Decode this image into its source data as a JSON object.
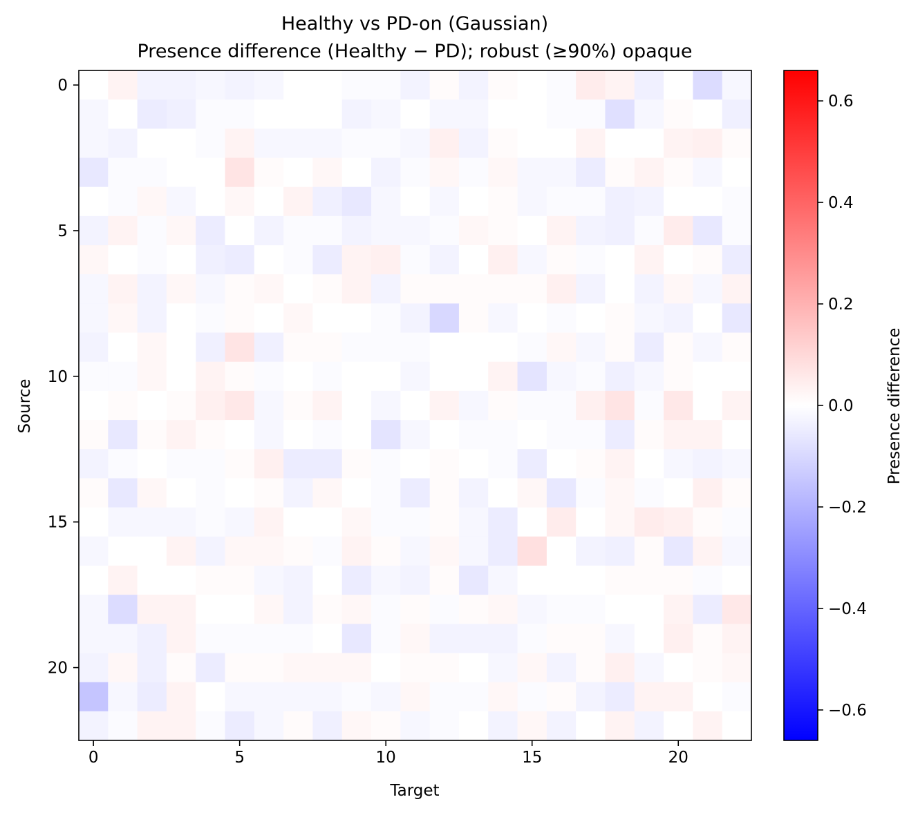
{
  "chart_data": {
    "type": "heatmap",
    "title": "Healthy vs PD-on (Gaussian)",
    "subtitle": "Presence difference (Healthy − PD); robust (≥90%) opaque",
    "xlabel": "Target",
    "ylabel": "Source",
    "x_ticks": [
      "0",
      "5",
      "10",
      "15",
      "20"
    ],
    "y_ticks": [
      "0",
      "5",
      "10",
      "15",
      "20"
    ],
    "n_rows": 23,
    "n_cols": 23,
    "colormap": "bwr",
    "color_min": "#0000ff",
    "color_mid": "#ffffff",
    "color_max": "#ff0000",
    "vmin": -0.66,
    "vmax": 0.66,
    "colorbar": {
      "label": "Presence difference",
      "ticks": [
        "−0.6",
        "−0.4",
        "−0.2",
        "0.0",
        "0.2",
        "0.4",
        "0.6"
      ],
      "tick_values": [
        -0.6,
        -0.4,
        -0.2,
        0.0,
        0.2,
        0.4,
        0.6
      ]
    },
    "values": [
      [
        0.0,
        0.03,
        -0.03,
        -0.03,
        -0.02,
        -0.03,
        -0.02,
        0.0,
        0.0,
        -0.01,
        -0.01,
        -0.03,
        0.01,
        -0.03,
        0.01,
        0.0,
        -0.01,
        0.05,
        0.03,
        -0.04,
        0.0,
        -0.09,
        -0.02
      ],
      [
        -0.02,
        0.0,
        -0.05,
        -0.04,
        -0.01,
        -0.01,
        0.0,
        0.0,
        0.0,
        -0.03,
        -0.02,
        0.0,
        -0.02,
        -0.02,
        0.0,
        0.0,
        -0.01,
        -0.01,
        -0.08,
        -0.02,
        0.01,
        0.0,
        -0.04
      ],
      [
        -0.02,
        -0.03,
        0.0,
        0.0,
        -0.01,
        0.03,
        -0.02,
        -0.02,
        -0.02,
        -0.01,
        -0.01,
        -0.02,
        0.04,
        -0.03,
        0.01,
        0.0,
        0.0,
        0.03,
        0.0,
        0.0,
        0.03,
        0.04,
        0.01
      ],
      [
        -0.06,
        -0.01,
        -0.01,
        0.0,
        0.0,
        0.07,
        0.01,
        0.0,
        0.02,
        0.0,
        -0.03,
        -0.01,
        0.02,
        -0.01,
        0.02,
        -0.02,
        -0.02,
        -0.05,
        0.01,
        0.03,
        0.01,
        -0.02,
        0.0
      ],
      [
        0.0,
        -0.01,
        0.02,
        -0.02,
        0.0,
        0.02,
        0.0,
        0.03,
        -0.04,
        -0.06,
        -0.02,
        0.0,
        -0.02,
        0.0,
        0.01,
        -0.02,
        -0.01,
        -0.01,
        -0.04,
        -0.03,
        0.0,
        0.0,
        -0.01
      ],
      [
        -0.03,
        0.03,
        -0.01,
        0.02,
        -0.05,
        0.0,
        -0.03,
        -0.01,
        -0.01,
        -0.03,
        -0.02,
        -0.02,
        -0.01,
        0.02,
        0.01,
        0.0,
        0.03,
        -0.03,
        -0.04,
        -0.01,
        0.05,
        -0.06,
        -0.01
      ],
      [
        0.02,
        0.0,
        -0.01,
        0.0,
        -0.04,
        -0.05,
        0.0,
        -0.01,
        -0.05,
        0.03,
        0.04,
        -0.01,
        -0.03,
        0.0,
        0.04,
        -0.02,
        0.01,
        -0.01,
        0.0,
        0.03,
        0.0,
        0.01,
        -0.05
      ],
      [
        -0.02,
        0.03,
        -0.03,
        0.02,
        -0.02,
        0.01,
        0.02,
        0.0,
        0.01,
        0.03,
        -0.03,
        0.01,
        0.01,
        0.01,
        0.01,
        0.01,
        0.04,
        -0.03,
        0.0,
        -0.03,
        0.02,
        -0.02,
        0.03
      ],
      [
        -0.02,
        0.02,
        -0.03,
        0.0,
        -0.01,
        0.01,
        0.0,
        0.02,
        0.0,
        0.0,
        -0.01,
        -0.03,
        -0.1,
        0.01,
        -0.02,
        0.0,
        -0.01,
        0.0,
        0.01,
        -0.02,
        -0.03,
        0.0,
        -0.06
      ],
      [
        -0.03,
        0.0,
        0.02,
        0.0,
        -0.04,
        0.07,
        -0.04,
        0.01,
        0.01,
        -0.01,
        -0.01,
        -0.01,
        0.0,
        0.0,
        0.0,
        -0.01,
        0.02,
        -0.02,
        0.01,
        -0.05,
        0.01,
        -0.02,
        0.01
      ],
      [
        -0.01,
        -0.01,
        0.02,
        0.0,
        0.03,
        0.01,
        -0.01,
        0.0,
        -0.01,
        0.0,
        0.0,
        -0.02,
        0.0,
        0.0,
        0.03,
        -0.07,
        -0.02,
        -0.01,
        -0.04,
        -0.02,
        0.01,
        0.0,
        0.0
      ],
      [
        0.0,
        0.01,
        0.0,
        0.01,
        0.04,
        0.06,
        -0.02,
        0.01,
        0.03,
        0.0,
        -0.02,
        0.0,
        0.03,
        -0.02,
        0.01,
        -0.01,
        -0.01,
        0.04,
        0.07,
        -0.01,
        0.06,
        0.0,
        0.03
      ],
      [
        0.01,
        -0.06,
        0.01,
        0.03,
        0.01,
        0.0,
        -0.02,
        0.0,
        -0.01,
        0.0,
        -0.07,
        -0.02,
        0.0,
        -0.01,
        -0.01,
        0.0,
        -0.01,
        -0.01,
        -0.05,
        0.01,
        0.03,
        0.03,
        0.0
      ],
      [
        -0.03,
        -0.01,
        0.0,
        -0.01,
        -0.01,
        0.01,
        0.04,
        -0.05,
        -0.05,
        0.01,
        -0.01,
        0.0,
        0.01,
        0.0,
        -0.01,
        -0.05,
        0.0,
        0.01,
        0.03,
        0.0,
        -0.02,
        -0.03,
        -0.02
      ],
      [
        0.01,
        -0.06,
        0.02,
        0.0,
        -0.01,
        0.0,
        0.01,
        -0.03,
        0.02,
        0.0,
        -0.01,
        -0.05,
        0.01,
        -0.03,
        0.0,
        0.02,
        -0.06,
        -0.01,
        0.02,
        -0.01,
        0.0,
        0.04,
        0.01
      ],
      [
        0.0,
        -0.02,
        -0.02,
        -0.02,
        -0.01,
        -0.02,
        0.03,
        0.0,
        0.0,
        0.02,
        -0.01,
        -0.01,
        0.01,
        -0.02,
        -0.05,
        0.0,
        0.05,
        0.0,
        0.02,
        0.05,
        0.04,
        0.01,
        -0.01
      ],
      [
        -0.02,
        0.0,
        0.0,
        0.03,
        -0.03,
        0.02,
        0.02,
        0.01,
        -0.01,
        0.03,
        0.01,
        -0.02,
        0.02,
        -0.02,
        -0.05,
        0.08,
        0.0,
        -0.03,
        -0.04,
        0.01,
        -0.06,
        0.03,
        -0.02
      ],
      [
        0.0,
        0.03,
        0.0,
        0.0,
        0.01,
        0.01,
        -0.02,
        -0.03,
        0.0,
        -0.05,
        -0.02,
        -0.03,
        0.01,
        -0.06,
        -0.02,
        0.0,
        0.0,
        0.0,
        0.01,
        0.01,
        0.01,
        -0.01,
        0.0
      ],
      [
        -0.02,
        -0.09,
        0.03,
        0.03,
        0.0,
        0.0,
        0.02,
        -0.03,
        0.01,
        0.02,
        -0.01,
        0.01,
        -0.01,
        0.01,
        0.02,
        -0.02,
        -0.01,
        -0.01,
        0.0,
        0.0,
        0.03,
        -0.05,
        0.06
      ],
      [
        -0.02,
        -0.02,
        -0.04,
        0.03,
        -0.01,
        -0.01,
        -0.01,
        -0.01,
        0.0,
        -0.06,
        -0.01,
        0.02,
        -0.03,
        -0.03,
        -0.03,
        -0.01,
        0.01,
        0.01,
        -0.02,
        0.0,
        0.04,
        0.01,
        0.03
      ],
      [
        -0.03,
        0.02,
        -0.04,
        0.01,
        -0.05,
        0.01,
        0.01,
        0.02,
        0.02,
        0.02,
        0.0,
        0.01,
        0.01,
        0.0,
        -0.02,
        0.02,
        -0.03,
        0.01,
        0.04,
        -0.02,
        0.0,
        0.01,
        0.02
      ],
      [
        -0.15,
        -0.02,
        -0.05,
        0.03,
        0.0,
        -0.02,
        -0.02,
        -0.02,
        -0.02,
        -0.01,
        -0.02,
        0.02,
        -0.01,
        -0.01,
        0.02,
        -0.01,
        0.01,
        -0.03,
        -0.05,
        0.03,
        0.03,
        0.0,
        -0.01
      ],
      [
        -0.03,
        -0.01,
        0.03,
        0.03,
        -0.01,
        -0.05,
        -0.02,
        0.01,
        -0.04,
        0.02,
        0.01,
        -0.02,
        -0.01,
        0.0,
        -0.03,
        0.02,
        -0.03,
        0.0,
        0.03,
        -0.03,
        0.0,
        0.03,
        0.0
      ]
    ]
  }
}
